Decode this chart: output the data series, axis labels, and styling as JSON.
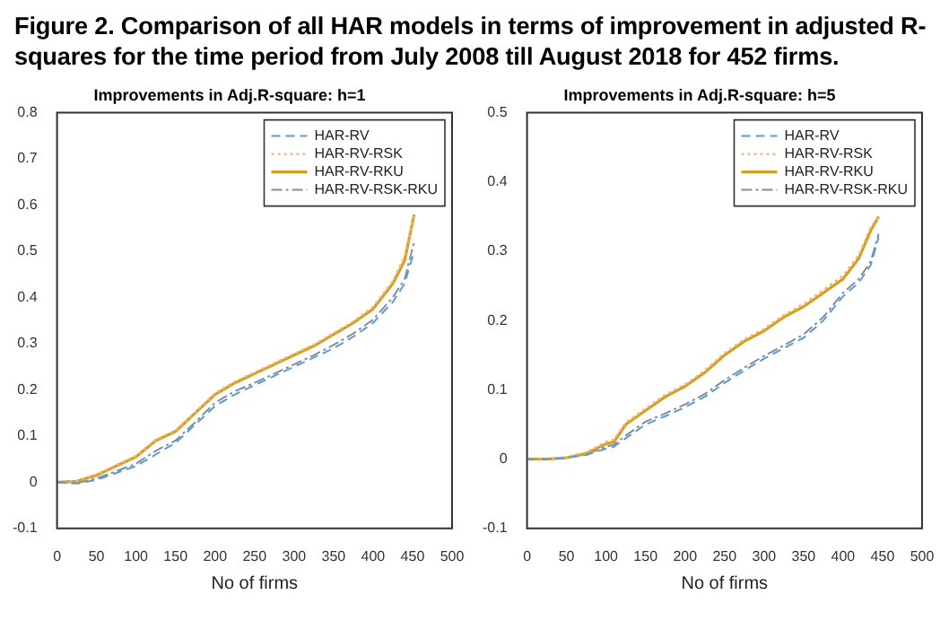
{
  "chart_data": [
    {
      "type": "line",
      "title": "Improvements in Adj.R-square: h=1",
      "xlabel": "No of firms",
      "annotations": [
        "Figure 2. Comparison of all HAR models in terms of improvement in adjusted R-squares for the time period from July 2008 till August 2018 for 452 firms."
      ],
      "x": [
        0,
        25,
        50,
        75,
        100,
        125,
        150,
        175,
        200,
        225,
        250,
        275,
        300,
        325,
        350,
        375,
        400,
        425,
        440,
        452
      ],
      "series": [
        {
          "name": "HAR-RV",
          "color": "#5b9bd5",
          "line_style": "dashed",
          "values": [
            0,
            -0.003,
            0.005,
            0.02,
            0.035,
            0.06,
            0.085,
            0.125,
            0.165,
            0.19,
            0.21,
            0.23,
            0.25,
            0.27,
            0.29,
            0.315,
            0.345,
            0.39,
            0.43,
            0.5
          ]
        },
        {
          "name": "HAR-RV-RSK",
          "color": "#f4b183",
          "line_style": "dotted",
          "values": [
            0,
            0.003,
            0.017,
            0.037,
            0.057,
            0.092,
            0.112,
            0.152,
            0.193,
            0.218,
            0.238,
            0.258,
            0.278,
            0.298,
            0.323,
            0.348,
            0.38,
            0.435,
            0.49,
            0.58
          ]
        },
        {
          "name": "HAR-RV-RKU",
          "color": "#d4a020",
          "line_style": "solid",
          "values": [
            0,
            0.002,
            0.015,
            0.035,
            0.055,
            0.09,
            0.11,
            0.15,
            0.19,
            0.215,
            0.235,
            0.255,
            0.275,
            0.295,
            0.32,
            0.345,
            0.375,
            0.43,
            0.48,
            0.58
          ]
        },
        {
          "name": "HAR-RV-RSK-RKU",
          "color": "#7f8ca0",
          "line_style": "dashdot",
          "values": [
            0,
            -0.002,
            0.008,
            0.024,
            0.04,
            0.068,
            0.09,
            0.13,
            0.172,
            0.197,
            0.215,
            0.235,
            0.255,
            0.275,
            0.297,
            0.322,
            0.352,
            0.4,
            0.44,
            0.52
          ]
        }
      ],
      "xlim": [
        0,
        500
      ],
      "xticks": [
        0,
        50,
        100,
        150,
        200,
        250,
        300,
        350,
        400,
        450,
        500
      ],
      "ylim": [
        -0.1,
        0.8
      ],
      "yticks": [
        -0.1,
        0,
        0.1,
        0.2,
        0.3,
        0.4,
        0.5,
        0.6,
        0.7,
        0.8
      ],
      "legend": "top right",
      "grid": false
    },
    {
      "type": "line",
      "title": "Improvements in Adj.R-square: h=5",
      "xlabel": "No of firms",
      "x": [
        0,
        25,
        50,
        75,
        100,
        110,
        125,
        150,
        175,
        200,
        225,
        250,
        275,
        300,
        325,
        350,
        375,
        400,
        420,
        435,
        445
      ],
      "series": [
        {
          "name": "HAR-RV",
          "color": "#5b9bd5",
          "line_style": "dashed",
          "values": [
            0,
            0,
            0.002,
            0.006,
            0.015,
            0.018,
            0.03,
            0.05,
            0.062,
            0.075,
            0.09,
            0.11,
            0.128,
            0.145,
            0.16,
            0.175,
            0.2,
            0.235,
            0.255,
            0.28,
            0.32
          ]
        },
        {
          "name": "HAR-RV-RSK",
          "color": "#f4b183",
          "line_style": "dotted",
          "values": [
            0,
            0,
            0.003,
            0.01,
            0.025,
            0.028,
            0.053,
            0.073,
            0.093,
            0.108,
            0.128,
            0.153,
            0.173,
            0.188,
            0.208,
            0.224,
            0.244,
            0.265,
            0.295,
            0.335,
            0.35
          ]
        },
        {
          "name": "HAR-RV-RKU",
          "color": "#d4a020",
          "line_style": "solid",
          "values": [
            0,
            0,
            0.002,
            0.008,
            0.022,
            0.025,
            0.05,
            0.07,
            0.09,
            0.105,
            0.125,
            0.15,
            0.17,
            0.185,
            0.205,
            0.22,
            0.24,
            0.26,
            0.29,
            0.33,
            0.35
          ]
        },
        {
          "name": "HAR-RV-RSK-RKU",
          "color": "#7f8ca0",
          "line_style": "dashdot",
          "values": [
            0,
            0,
            0.002,
            0.007,
            0.018,
            0.021,
            0.034,
            0.054,
            0.066,
            0.079,
            0.094,
            0.114,
            0.132,
            0.149,
            0.164,
            0.18,
            0.205,
            0.24,
            0.26,
            0.285,
            0.325
          ]
        }
      ],
      "xlim": [
        0,
        500
      ],
      "xticks": [
        0,
        50,
        100,
        150,
        200,
        250,
        300,
        350,
        400,
        450,
        500
      ],
      "ylim": [
        -0.1,
        0.5
      ],
      "yticks": [
        -0.1,
        0,
        0.1,
        0.2,
        0.3,
        0.4,
        0.5
      ],
      "legend": "top right",
      "grid": false
    }
  ]
}
